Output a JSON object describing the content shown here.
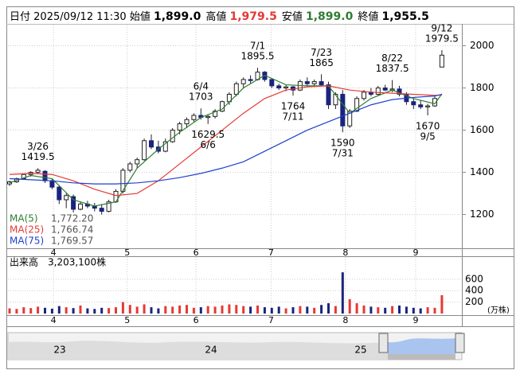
{
  "header": {
    "date_label": "日付",
    "datetime": "2025/09/12 11:30",
    "fields": [
      {
        "label": "始値",
        "value": "1,899.0"
      },
      {
        "label": "高値",
        "value": "1,979.5"
      },
      {
        "label": "安値",
        "value": "1,899.0"
      },
      {
        "label": "終値",
        "value": "1,955.5"
      }
    ]
  },
  "chart_data": [
    {
      "type": "candlestick",
      "candles": [
        [
          1345,
          1360,
          1335,
          1355
        ],
        [
          1355,
          1375,
          1350,
          1370
        ],
        [
          1370,
          1395,
          1365,
          1390
        ],
        [
          1390,
          1405,
          1380,
          1400
        ],
        [
          1400,
          1419.5,
          1395,
          1410
        ],
        [
          1405,
          1410,
          1350,
          1360
        ],
        [
          1360,
          1370,
          1320,
          1330
        ],
        [
          1330,
          1340,
          1250,
          1270
        ],
        [
          1270,
          1300,
          1230,
          1290
        ],
        [
          1285,
          1295,
          1210,
          1225
        ],
        [
          1225,
          1260,
          1220,
          1250
        ],
        [
          1250,
          1265,
          1230,
          1240
        ],
        [
          1240,
          1255,
          1215,
          1230
        ],
        [
          1230,
          1250,
          1200,
          1215
        ],
        [
          1215,
          1270,
          1210,
          1260
        ],
        [
          1260,
          1320,
          1255,
          1310
        ],
        [
          1310,
          1420,
          1300,
          1410
        ],
        [
          1410,
          1450,
          1400,
          1440
        ],
        [
          1440,
          1470,
          1420,
          1460
        ],
        [
          1460,
          1560,
          1455,
          1550
        ],
        [
          1550,
          1580,
          1510,
          1520
        ],
        [
          1520,
          1550,
          1490,
          1500
        ],
        [
          1500,
          1560,
          1495,
          1545
        ],
        [
          1545,
          1610,
          1540,
          1600
        ],
        [
          1600,
          1640,
          1580,
          1630
        ],
        [
          1630,
          1660,
          1610,
          1650
        ],
        [
          1650,
          1680,
          1640,
          1670
        ],
        [
          1670,
          1703,
          1650,
          1660
        ],
        [
          1660,
          1675,
          1629.5,
          1665
        ],
        [
          1665,
          1700,
          1655,
          1690
        ],
        [
          1690,
          1740,
          1685,
          1735
        ],
        [
          1735,
          1780,
          1720,
          1770
        ],
        [
          1770,
          1830,
          1760,
          1820
        ],
        [
          1820,
          1850,
          1800,
          1840
        ],
        [
          1840,
          1860,
          1820,
          1835
        ],
        [
          1840,
          1895.5,
          1835,
          1875
        ],
        [
          1875,
          1880,
          1830,
          1840
        ],
        [
          1840,
          1845,
          1800,
          1810
        ],
        [
          1810,
          1820,
          1790,
          1800
        ],
        [
          1800,
          1815,
          1785,
          1805
        ],
        [
          1805,
          1810,
          1764,
          1790
        ],
        [
          1790,
          1840,
          1785,
          1830
        ],
        [
          1830,
          1850,
          1810,
          1820
        ],
        [
          1820,
          1840,
          1805,
          1830
        ],
        [
          1830,
          1865,
          1810,
          1815
        ],
        [
          1815,
          1830,
          1700,
          1720
        ],
        [
          1720,
          1780,
          1700,
          1770
        ],
        [
          1770,
          1790,
          1590,
          1620
        ],
        [
          1620,
          1700,
          1610,
          1690
        ],
        [
          1690,
          1760,
          1685,
          1750
        ],
        [
          1750,
          1790,
          1740,
          1780
        ],
        [
          1780,
          1800,
          1760,
          1770
        ],
        [
          1770,
          1810,
          1765,
          1800
        ],
        [
          1800,
          1815,
          1785,
          1790
        ],
        [
          1790,
          1837.5,
          1780,
          1795
        ],
        [
          1795,
          1810,
          1760,
          1770
        ],
        [
          1770,
          1780,
          1720,
          1735
        ],
        [
          1735,
          1750,
          1700,
          1720
        ],
        [
          1720,
          1740,
          1700,
          1710
        ],
        [
          1710,
          1725,
          1670,
          1715
        ],
        [
          1715,
          1760,
          1710,
          1750
        ],
        [
          1899,
          1979.5,
          1899,
          1955.5
        ]
      ],
      "up_color": "#ffffff",
      "down_color": "#1a237e",
      "edge_color": "#222222",
      "series": [
        {
          "name": "MA(5)",
          "color": "#2e7d32",
          "last": {
            "value": 1772.2,
            "label": "1,772.20"
          },
          "x": [
            0,
            3,
            6,
            9,
            12,
            15,
            18,
            21,
            24,
            27,
            30,
            33,
            36,
            39,
            42,
            45,
            48,
            51,
            54,
            57,
            60,
            61
          ],
          "values": [
            1350,
            1385,
            1370,
            1270,
            1240,
            1260,
            1420,
            1510,
            1590,
            1660,
            1700,
            1800,
            1860,
            1815,
            1810,
            1810,
            1680,
            1750,
            1790,
            1750,
            1725,
            1772.2
          ]
        },
        {
          "name": "MA(25)",
          "color": "#e53935",
          "last": {
            "value": 1766.74,
            "label": "1,766.74"
          },
          "x": [
            0,
            3,
            6,
            9,
            12,
            15,
            18,
            21,
            24,
            27,
            30,
            33,
            36,
            39,
            42,
            45,
            48,
            51,
            54,
            57,
            60,
            61
          ],
          "values": [
            1390,
            1395,
            1390,
            1360,
            1320,
            1290,
            1300,
            1360,
            1440,
            1520,
            1600,
            1680,
            1750,
            1790,
            1805,
            1810,
            1790,
            1780,
            1775,
            1770,
            1765,
            1766.74
          ]
        },
        {
          "name": "MA(75)",
          "color": "#1e3fcf",
          "last": {
            "value": 1769.57,
            "label": "1,769.57"
          },
          "x": [
            0,
            3,
            6,
            9,
            12,
            15,
            18,
            21,
            24,
            27,
            30,
            33,
            36,
            39,
            42,
            45,
            48,
            51,
            54,
            57,
            60,
            61
          ],
          "values": [
            1370,
            1365,
            1360,
            1350,
            1345,
            1345,
            1350,
            1360,
            1375,
            1395,
            1420,
            1450,
            1500,
            1550,
            1600,
            1640,
            1680,
            1720,
            1745,
            1755,
            1762,
            1769.57
          ]
        }
      ],
      "annotations": [
        {
          "date": "3/26",
          "value": 1419.5,
          "kind": "high"
        },
        {
          "date": "6/4",
          "value": 1703,
          "kind": "high"
        },
        {
          "date": "6/6",
          "value": 1629.5,
          "kind": "low"
        },
        {
          "date": "7/1",
          "value": 1895.5,
          "kind": "high"
        },
        {
          "date": "7/11",
          "value": 1764,
          "kind": "low"
        },
        {
          "date": "7/23",
          "value": 1865,
          "kind": "high"
        },
        {
          "date": "7/31",
          "value": 1590,
          "kind": "low"
        },
        {
          "date": "8/22",
          "value": 1837.5,
          "kind": "high"
        },
        {
          "date": "9/5",
          "value": 1670,
          "kind": "low"
        },
        {
          "date": "9/12",
          "value": 1979.5,
          "kind": "high"
        }
      ],
      "ylim": [
        1040,
        2100
      ],
      "yticks": [
        1200,
        1400,
        1600,
        1800,
        2000
      ],
      "xticks": [
        {
          "value": 6.2,
          "label": "4"
        },
        {
          "value": 16.6,
          "label": "5"
        },
        {
          "value": 26.3,
          "label": "6"
        },
        {
          "value": 36.9,
          "label": "7"
        },
        {
          "value": 47.4,
          "label": "8"
        },
        {
          "value": 57.3,
          "label": "9"
        }
      ],
      "grid": true
    },
    {
      "type": "volume",
      "title": "出来高　3,203,100株",
      "unit": "(万株)",
      "values": [
        90,
        80,
        110,
        95,
        120,
        100,
        85,
        130,
        110,
        95,
        140,
        90,
        80,
        100,
        95,
        110,
        200,
        150,
        120,
        160,
        110,
        90,
        130,
        120,
        140,
        150,
        100,
        110,
        130,
        120,
        140,
        160,
        150,
        130,
        120,
        140,
        110,
        100,
        120,
        90,
        110,
        130,
        120,
        100,
        150,
        180,
        130,
        720,
        250,
        180,
        140,
        120,
        110,
        100,
        130,
        140,
        120,
        100,
        90,
        110,
        100,
        320.31
      ],
      "up_color": "#e53935",
      "down_color": "#1a237e",
      "ylim": [
        0,
        987
      ],
      "yticks": [
        200,
        400,
        600
      ],
      "grid": true
    }
  ],
  "navigator": {
    "labels": [
      "23",
      "24",
      "25"
    ]
  }
}
